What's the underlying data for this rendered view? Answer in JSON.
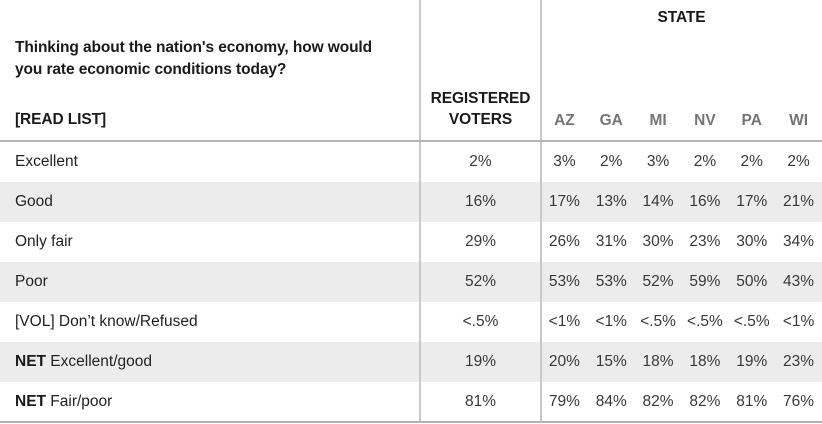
{
  "header": {
    "question": "Thinking about the nation's economy, how would you rate economic conditions today?",
    "read_list": "[READ LIST]",
    "registered_voters": "REGISTERED VOTERS",
    "state_group": "STATE",
    "state_cols": [
      "AZ",
      "GA",
      "MI",
      "NV",
      "PA",
      "WI"
    ]
  },
  "rows": [
    {
      "prefix": "",
      "label": "Excellent",
      "rv": "2%",
      "values": [
        "3%",
        "2%",
        "3%",
        "2%",
        "2%",
        "2%"
      ]
    },
    {
      "prefix": "",
      "label": "Good",
      "rv": "16%",
      "values": [
        "17%",
        "13%",
        "14%",
        "16%",
        "17%",
        "21%"
      ]
    },
    {
      "prefix": "",
      "label": "Only fair",
      "rv": "29%",
      "values": [
        "26%",
        "31%",
        "30%",
        "23%",
        "30%",
        "34%"
      ]
    },
    {
      "prefix": "",
      "label": "Poor",
      "rv": "52%",
      "values": [
        "53%",
        "53%",
        "52%",
        "59%",
        "50%",
        "43%"
      ]
    },
    {
      "prefix": "",
      "label": "[VOL] Don’t know/Refused",
      "rv": "<.5%",
      "values": [
        "<1%",
        "<1%",
        "<.5%",
        "<.5%",
        "<.5%",
        "<1%"
      ]
    },
    {
      "prefix": "NET",
      "label": " Excellent/good",
      "rv": "19%",
      "values": [
        "20%",
        "15%",
        "18%",
        "18%",
        "19%",
        "23%"
      ]
    },
    {
      "prefix": "NET",
      "label": " Fair/poor",
      "rv": "81%",
      "values": [
        "79%",
        "84%",
        "82%",
        "82%",
        "81%",
        "76%"
      ]
    }
  ],
  "chart_data": {
    "type": "table",
    "title": "Thinking about the nation's economy, how would you rate economic conditions today? [READ LIST]",
    "column_groups": [
      {
        "label": "STATE",
        "columns": [
          "AZ",
          "GA",
          "MI",
          "NV",
          "PA",
          "WI"
        ]
      }
    ],
    "columns": [
      "REGISTERED VOTERS",
      "AZ",
      "GA",
      "MI",
      "NV",
      "PA",
      "WI"
    ],
    "rows": [
      [
        "Excellent",
        "2%",
        "3%",
        "2%",
        "3%",
        "2%",
        "2%",
        "2%"
      ],
      [
        "Good",
        "16%",
        "17%",
        "13%",
        "14%",
        "16%",
        "17%",
        "21%"
      ],
      [
        "Only fair",
        "29%",
        "26%",
        "31%",
        "30%",
        "23%",
        "30%",
        "34%"
      ],
      [
        "Poor",
        "52%",
        "53%",
        "53%",
        "52%",
        "59%",
        "50%",
        "43%"
      ],
      [
        "[VOL] Don’t know/Refused",
        "<.5%",
        "<1%",
        "<1%",
        "<.5%",
        "<.5%",
        "<.5%",
        "<1%"
      ],
      [
        "NET Excellent/good",
        "19%",
        "20%",
        "15%",
        "18%",
        "18%",
        "19%",
        "23%"
      ],
      [
        "NET Fair/poor",
        "81%",
        "79%",
        "84%",
        "82%",
        "82%",
        "81%",
        "76%"
      ]
    ]
  },
  "colors": {
    "text": "#1a1a1a",
    "data_text": "#383838",
    "state_header_text": "#757575",
    "stripe": "#ececec",
    "horizontal_rule": "#b4b4b4",
    "vertical_rule": "#c8c8c8"
  }
}
